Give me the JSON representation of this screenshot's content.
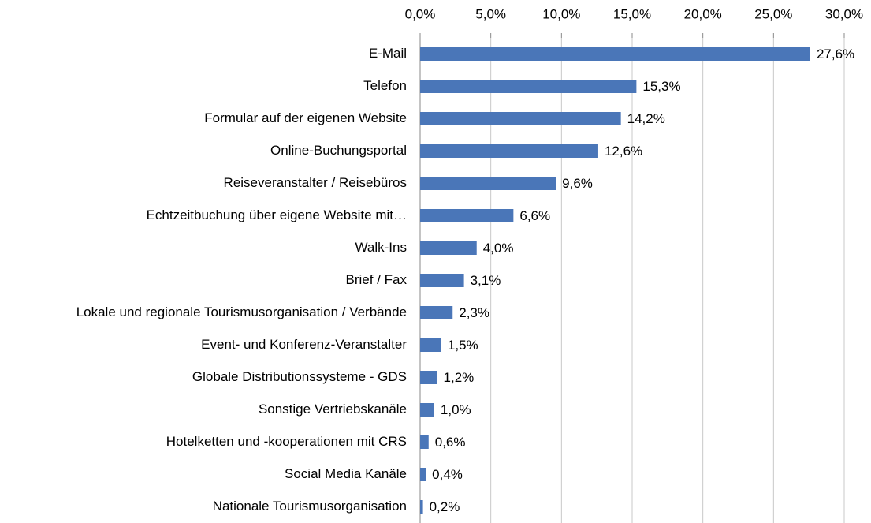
{
  "chart_data": {
    "type": "bar",
    "orientation": "horizontal",
    "categories": [
      "E-Mail",
      "Telefon",
      "Formular auf der eigenen Website",
      "Online-Buchungsportal",
      "Reiseveranstalter / Reisebüros",
      "Echtzeitbuchung über eigene Website mit…",
      "Walk-Ins",
      "Brief / Fax",
      "Lokale und regionale Tourismusorganisation / Verbände",
      "Event- und Konferenz-Veranstalter",
      "Globale Distributionssysteme - GDS",
      "Sonstige Vertriebskanäle",
      "Hotelketten und -kooperationen mit CRS",
      "Social Media Kanäle",
      "Nationale Tourismusorganisation"
    ],
    "values": [
      27.6,
      15.3,
      14.2,
      12.6,
      9.6,
      6.6,
      4.0,
      3.1,
      2.3,
      1.5,
      1.2,
      1.0,
      0.6,
      0.4,
      0.2
    ],
    "value_labels": [
      "27,6%",
      "15,3%",
      "14,2%",
      "12,6%",
      "9,6%",
      "6,6%",
      "4,0%",
      "3,1%",
      "2,3%",
      "1,5%",
      "1,2%",
      "1,0%",
      "0,6%",
      "0,4%",
      "0,2%"
    ],
    "color": "#4a76b8",
    "xlim": [
      0,
      30
    ],
    "xticks": [
      {
        "value": 0,
        "label": "0,0%"
      },
      {
        "value": 5,
        "label": "5,0%"
      },
      {
        "value": 10,
        "label": "10,0%"
      },
      {
        "value": 15,
        "label": "15,0%"
      },
      {
        "value": 20,
        "label": "20,0%"
      },
      {
        "value": 25,
        "label": "25,0%"
      },
      {
        "value": 30,
        "label": "30,0%"
      }
    ],
    "grid": true
  }
}
